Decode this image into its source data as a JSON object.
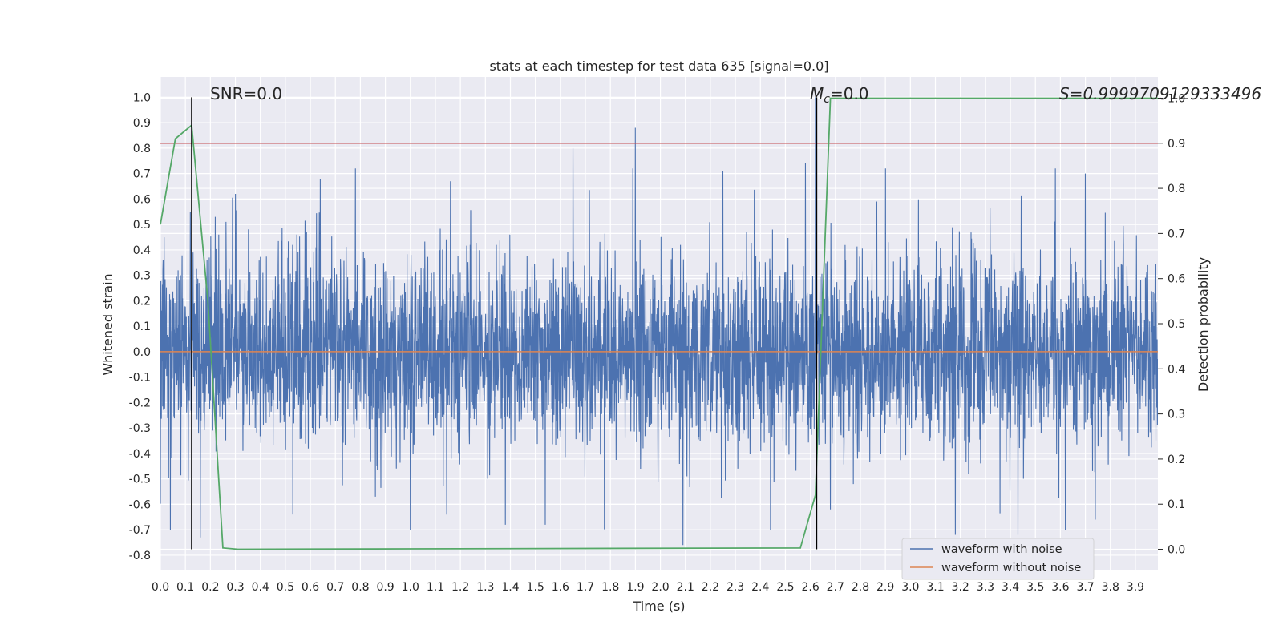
{
  "chart_data": {
    "type": "line",
    "title": "stats at each timestep for test data 635 [signal=0.0]",
    "xlabel": "Time (s)",
    "ylabel": "Whitened strain",
    "y2label": "Detection probability",
    "xlim": [
      0.0,
      3.99
    ],
    "ylim": [
      -0.86,
      1.08
    ],
    "y2lim": [
      -0.047,
      1.047
    ],
    "xticks": [
      "0.0",
      "0.1",
      "0.2",
      "0.3",
      "0.4",
      "0.5",
      "0.6",
      "0.7",
      "0.8",
      "0.9",
      "1.0",
      "1.1",
      "1.2",
      "1.3",
      "1.4",
      "1.5",
      "1.6",
      "1.7",
      "1.8",
      "1.9",
      "2.0",
      "2.1",
      "2.2",
      "2.3",
      "2.4",
      "2.5",
      "2.6",
      "2.7",
      "2.8",
      "2.9",
      "3.0",
      "3.1",
      "3.2",
      "3.3",
      "3.4",
      "3.5",
      "3.6",
      "3.7",
      "3.8",
      "3.9"
    ],
    "yticks": [
      "1.0",
      "0.9",
      "0.8",
      "0.7",
      "0.6",
      "0.5",
      "0.4",
      "0.3",
      "0.2",
      "0.1",
      "0.0",
      "-0.1",
      "-0.2",
      "-0.3",
      "-0.4",
      "-0.5",
      "-0.6",
      "-0.7",
      "-0.8"
    ],
    "y2ticks": [
      "1.0",
      "0.9",
      "0.8",
      "0.7",
      "0.6",
      "0.5",
      "0.4",
      "0.3",
      "0.2",
      "0.1",
      "0.0"
    ],
    "grid": true,
    "legend_position": "bottom-right",
    "annotations": {
      "snr": "SNR=0.0",
      "mc_prefix": "M",
      "mc_sub": "c",
      "mc_suffix": "=0.0",
      "s": "S=0.9999709129333496"
    },
    "threshold_y2": 0.9,
    "vertical_markers_x": [
      0.125,
      2.625
    ],
    "colors": {
      "noisy": "#4c72b0",
      "clean": "#dd8452",
      "probability": "#55a868",
      "threshold": "#c44e52",
      "markers": "#000000",
      "background": "#eaeaf2"
    },
    "series": [
      {
        "name": "waveform with noise",
        "type": "noise",
        "amplitude_typical": 0.3,
        "range": [
          -0.76,
          1.0
        ],
        "spikes": [
          {
            "x": 0.04,
            "y": -0.7
          },
          {
            "x": 0.12,
            "y": 0.55
          },
          {
            "x": 0.16,
            "y": -0.73
          },
          {
            "x": 0.22,
            "y": 0.53
          },
          {
            "x": 0.3,
            "y": 0.62
          },
          {
            "x": 0.53,
            "y": -0.64
          },
          {
            "x": 0.64,
            "y": 0.68
          },
          {
            "x": 0.78,
            "y": 0.72
          },
          {
            "x": 0.86,
            "y": -0.57
          },
          {
            "x": 1.0,
            "y": -0.7
          },
          {
            "x": 1.16,
            "y": 0.67
          },
          {
            "x": 1.38,
            "y": -0.68
          },
          {
            "x": 1.54,
            "y": -0.68
          },
          {
            "x": 1.65,
            "y": 0.8
          },
          {
            "x": 1.9,
            "y": 0.88
          },
          {
            "x": 1.89,
            "y": 0.72
          },
          {
            "x": 2.09,
            "y": -0.76
          },
          {
            "x": 2.25,
            "y": 0.71
          },
          {
            "x": 2.44,
            "y": -0.7
          },
          {
            "x": 2.58,
            "y": 0.74
          },
          {
            "x": 2.62,
            "y": 1.0
          },
          {
            "x": 2.68,
            "y": -0.62
          },
          {
            "x": 2.9,
            "y": 0.72
          },
          {
            "x": 3.18,
            "y": -0.72
          },
          {
            "x": 3.43,
            "y": -0.72
          },
          {
            "x": 3.58,
            "y": 0.72
          },
          {
            "x": 3.62,
            "y": -0.7
          },
          {
            "x": 3.7,
            "y": 0.7
          },
          {
            "x": 3.74,
            "y": -0.66
          }
        ]
      },
      {
        "name": "waveform without noise",
        "x": [
          0.0,
          3.99
        ],
        "y": [
          0.0,
          0.0
        ]
      },
      {
        "name": "",
        "axis": "y2",
        "x": [
          0.0,
          0.06,
          0.125,
          0.19,
          0.25,
          0.31,
          2.56,
          2.62,
          2.68,
          3.99
        ],
        "y": [
          0.72,
          0.91,
          0.94,
          0.55,
          0.003,
          0.0,
          0.003,
          0.12,
          1.0,
          1.0
        ]
      }
    ]
  }
}
